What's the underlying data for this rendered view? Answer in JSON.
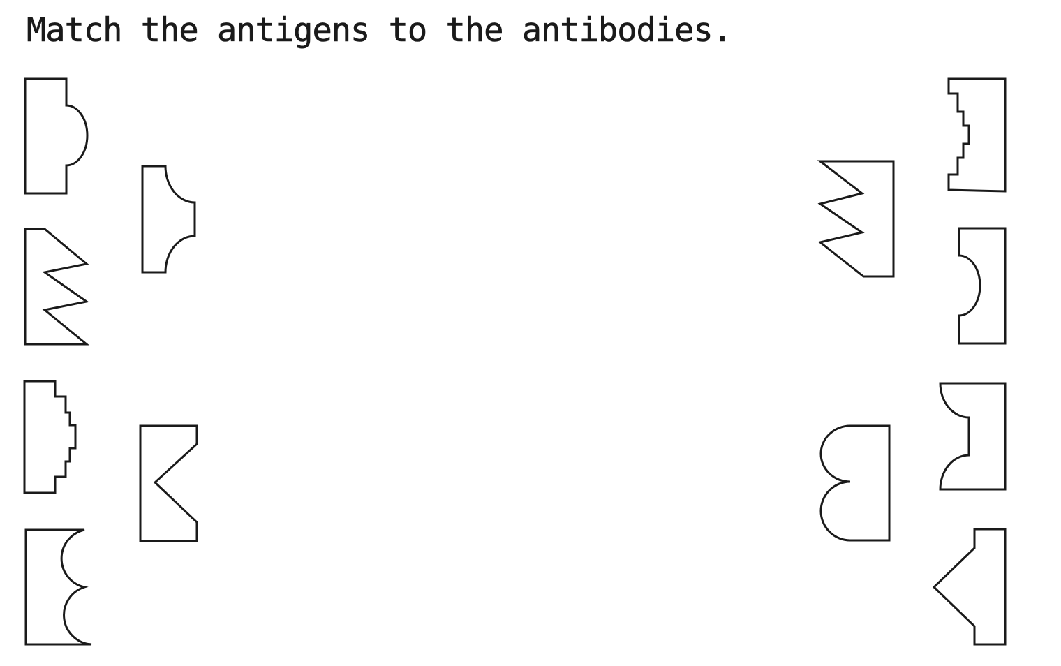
{
  "worksheet": {
    "title": "Match the antigens to the antibodies.",
    "stroke_color": "#1a1a1a",
    "background_color": "#ffffff"
  }
}
